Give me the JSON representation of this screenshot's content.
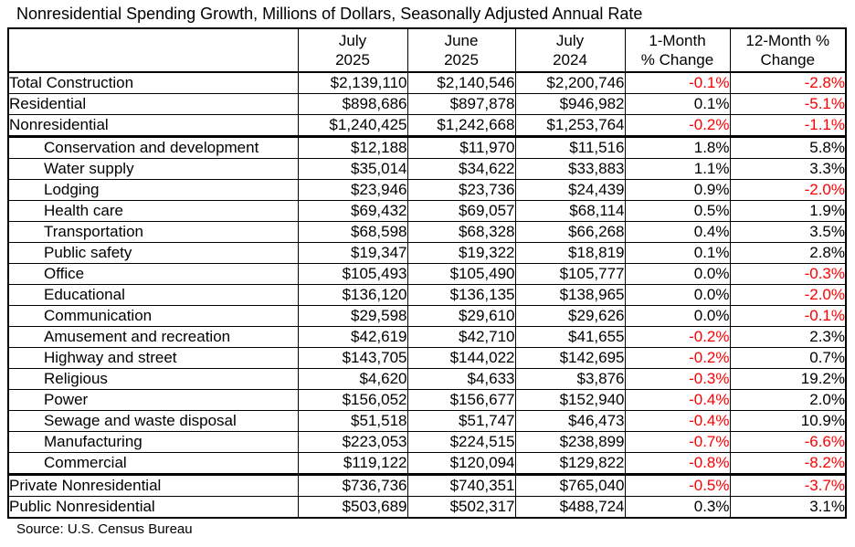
{
  "page": {
    "title": "Nonresidential Spending Growth, Millions of Dollars, Seasonally Adjusted Annual Rate",
    "source_note": "Source: U.S. Census Bureau"
  },
  "colors": {
    "negative_value": "#fe0000",
    "text": "#000000",
    "border": "#000000",
    "background": "#ffffff"
  },
  "chart_data": {
    "type": "table",
    "title": "Nonresidential Spending Growth, Millions of Dollars, Seasonally Adjusted Annual Rate",
    "units": "Millions of Dollars, Seasonally Adjusted Annual Rate",
    "source": "Source: U.S. Census Bureau",
    "columns": [
      {
        "name": "category",
        "lines": [
          "",
          ""
        ]
      },
      {
        "name": "july-2025",
        "lines": [
          "July",
          "2025"
        ]
      },
      {
        "name": "june-2025",
        "lines": [
          "June",
          "2025"
        ]
      },
      {
        "name": "july-2024",
        "lines": [
          "July",
          "2024"
        ]
      },
      {
        "name": "1-month-pct-change",
        "lines": [
          "1-Month",
          "% Change"
        ]
      },
      {
        "name": "12-month-pct-change",
        "lines": [
          "12-Month %",
          "Change"
        ]
      }
    ],
    "rows": [
      {
        "label": "Total Construction",
        "indent": false,
        "values": [
          "$2,139,110",
          "$2,140,546",
          "$2,200,746",
          "-0.1%",
          "-2.8%"
        ],
        "thick_border_below": false
      },
      {
        "label": "Residential",
        "indent": false,
        "values": [
          "$898,686",
          "$897,878",
          "$946,982",
          "0.1%",
          "-5.1%"
        ],
        "thick_border_below": false
      },
      {
        "label": "Nonresidential",
        "indent": false,
        "values": [
          "$1,240,425",
          "$1,242,668",
          "$1,253,764",
          "-0.2%",
          "-1.1%"
        ],
        "thick_border_below": true
      },
      {
        "label": "Conservation and development",
        "indent": true,
        "values": [
          "$12,188",
          "$11,970",
          "$11,516",
          "1.8%",
          "5.8%"
        ],
        "thick_border_below": false
      },
      {
        "label": "Water supply",
        "indent": true,
        "values": [
          "$35,014",
          "$34,622",
          "$33,883",
          "1.1%",
          "3.3%"
        ],
        "thick_border_below": false
      },
      {
        "label": "Lodging",
        "indent": true,
        "values": [
          "$23,946",
          "$23,736",
          "$24,439",
          "0.9%",
          "-2.0%"
        ],
        "thick_border_below": false
      },
      {
        "label": "Health care",
        "indent": true,
        "values": [
          "$69,432",
          "$69,057",
          "$68,114",
          "0.5%",
          "1.9%"
        ],
        "thick_border_below": false
      },
      {
        "label": "Transportation",
        "indent": true,
        "values": [
          "$68,598",
          "$68,328",
          "$66,268",
          "0.4%",
          "3.5%"
        ],
        "thick_border_below": false
      },
      {
        "label": "Public safety",
        "indent": true,
        "values": [
          "$19,347",
          "$19,322",
          "$18,819",
          "0.1%",
          "2.8%"
        ],
        "thick_border_below": false
      },
      {
        "label": "Office",
        "indent": true,
        "values": [
          "$105,493",
          "$105,490",
          "$105,777",
          "0.0%",
          "-0.3%"
        ],
        "thick_border_below": false
      },
      {
        "label": "Educational",
        "indent": true,
        "values": [
          "$136,120",
          "$136,135",
          "$138,965",
          "0.0%",
          "-2.0%"
        ],
        "thick_border_below": false
      },
      {
        "label": "Communication",
        "indent": true,
        "values": [
          "$29,598",
          "$29,610",
          "$29,626",
          "0.0%",
          "-0.1%"
        ],
        "thick_border_below": false
      },
      {
        "label": "Amusement and recreation",
        "indent": true,
        "values": [
          "$42,619",
          "$42,710",
          "$41,655",
          "-0.2%",
          "2.3%"
        ],
        "thick_border_below": false
      },
      {
        "label": "Highway and street",
        "indent": true,
        "values": [
          "$143,705",
          "$144,022",
          "$142,695",
          "-0.2%",
          "0.7%"
        ],
        "thick_border_below": false
      },
      {
        "label": "Religious",
        "indent": true,
        "values": [
          "$4,620",
          "$4,633",
          "$3,876",
          "-0.3%",
          "19.2%"
        ],
        "thick_border_below": false
      },
      {
        "label": "Power",
        "indent": true,
        "values": [
          "$156,052",
          "$156,677",
          "$152,940",
          "-0.4%",
          "2.0%"
        ],
        "thick_border_below": false
      },
      {
        "label": "Sewage and waste disposal",
        "indent": true,
        "values": [
          "$51,518",
          "$51,747",
          "$46,473",
          "-0.4%",
          "10.9%"
        ],
        "thick_border_below": false
      },
      {
        "label": "Manufacturing",
        "indent": true,
        "values": [
          "$223,053",
          "$224,515",
          "$238,899",
          "-0.7%",
          "-6.6%"
        ],
        "thick_border_below": false
      },
      {
        "label": "Commercial",
        "indent": true,
        "values": [
          "$119,122",
          "$120,094",
          "$129,822",
          "-0.8%",
          "-8.2%"
        ],
        "thick_border_below": true
      },
      {
        "label": "Private Nonresidential",
        "indent": false,
        "values": [
          "$736,736",
          "$740,351",
          "$765,040",
          "-0.5%",
          "-3.7%"
        ],
        "thick_border_below": false
      },
      {
        "label": "Public Nonresidential",
        "indent": false,
        "values": [
          "$503,689",
          "$502,317",
          "$488,724",
          "0.3%",
          "3.1%"
        ],
        "thick_border_below": false
      }
    ]
  }
}
